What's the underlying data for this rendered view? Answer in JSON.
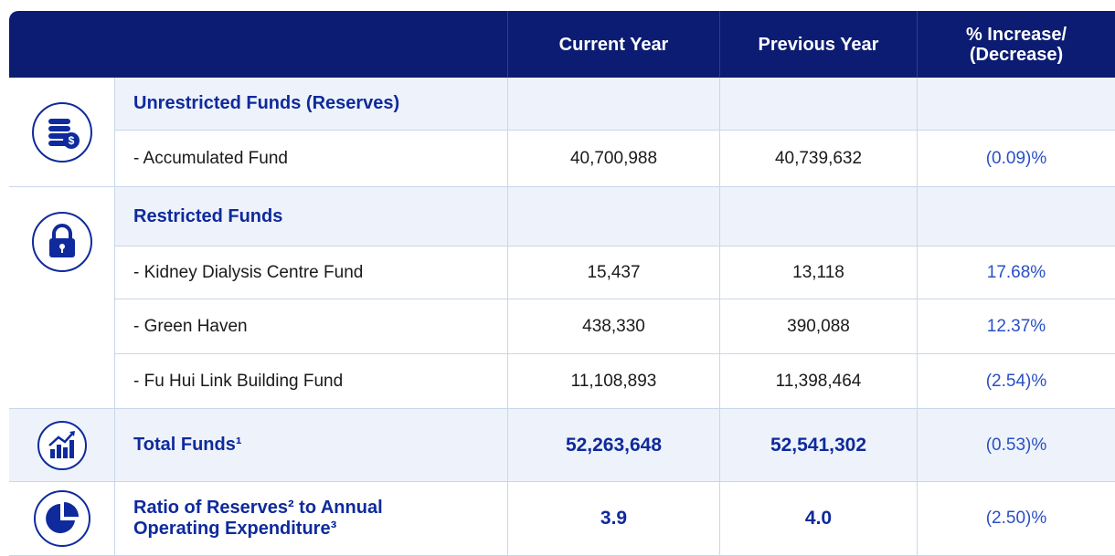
{
  "header": {
    "columns": [
      "Current Year",
      "Previous Year",
      [
        "% Increase/",
        "(Decrease)"
      ]
    ]
  },
  "groups": [
    {
      "title": "Unrestricted Funds (Reserves)",
      "rows": [
        {
          "label": "- Accumulated Fund",
          "current": "40,700,988",
          "previous": "40,739,632",
          "change": "(0.09)%"
        }
      ]
    },
    {
      "title": "Restricted Funds",
      "rows": [
        {
          "label": "- Kidney Dialysis Centre Fund",
          "current": "15,437",
          "previous": "13,118",
          "change": "17.68%"
        },
        {
          "label": "- Green Haven",
          "current": "438,330",
          "previous": "390,088",
          "change": "12.37%"
        },
        {
          "label": "- Fu Hui Link Building Fund",
          "current": "11,108,893",
          "previous": "11,398,464",
          "change": "(2.54)%"
        }
      ]
    }
  ],
  "total": {
    "label": "Total Funds¹",
    "current": "52,263,648",
    "previous": "52,541,302",
    "change": "(0.53)%"
  },
  "ratio": {
    "label": [
      "Ratio of Reserves² to Annual",
      "Operating Expenditure³"
    ],
    "current": "3.9",
    "previous": "4.0",
    "change": "(2.50)%"
  }
}
